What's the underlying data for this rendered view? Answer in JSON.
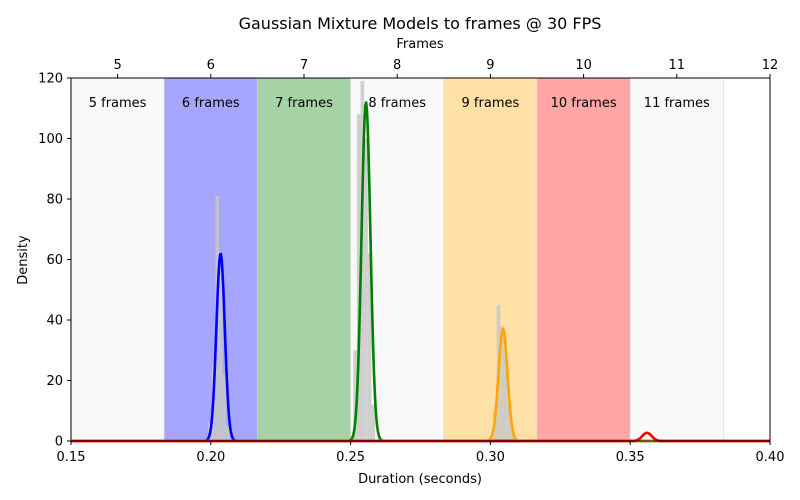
{
  "chart_data": {
    "type": "area",
    "title": "Gaussian Mixture Models to frames @ 30 FPS",
    "xlabel": "Duration (seconds)",
    "ylabel": "Density",
    "top_xlabel": "Frames",
    "xlim": [
      0.15,
      0.4
    ],
    "ylim": [
      0,
      120
    ],
    "x_ticks": [
      "0.15",
      "0.20",
      "0.25",
      "0.30",
      "0.35",
      "0.40"
    ],
    "y_ticks": [
      "0",
      "20",
      "40",
      "60",
      "80",
      "100",
      "120"
    ],
    "top_ticks": [
      "5",
      "6",
      "7",
      "8",
      "9",
      "10",
      "11",
      "12"
    ],
    "fps": 30,
    "frame_bands": [
      {
        "label": "5 frames",
        "frames": 5,
        "color": "#f2f2f2",
        "opacity": 0.45
      },
      {
        "label": "6 frames",
        "frames": 6,
        "color": "#0000ff",
        "opacity": 0.35
      },
      {
        "label": "7 frames",
        "frames": 7,
        "color": "#008000",
        "opacity": 0.35
      },
      {
        "label": "8 frames",
        "frames": 8,
        "color": "#f2f2f2",
        "opacity": 0.45
      },
      {
        "label": "9 frames",
        "frames": 9,
        "color": "#ffa500",
        "opacity": 0.35
      },
      {
        "label": "10 frames",
        "frames": 10,
        "color": "#ff0000",
        "opacity": 0.35
      },
      {
        "label": "11 frames",
        "frames": 11,
        "color": "#f2f2f2",
        "opacity": 0.45
      }
    ],
    "histogram": {
      "color": "#c8c8c8",
      "bars": [
        {
          "x": 0.1997,
          "height": 6
        },
        {
          "x": 0.201,
          "height": 25
        },
        {
          "x": 0.2023,
          "height": 81
        },
        {
          "x": 0.2036,
          "height": 55
        },
        {
          "x": 0.2049,
          "height": 22
        },
        {
          "x": 0.2062,
          "height": 5
        },
        {
          "x": 0.2516,
          "height": 30
        },
        {
          "x": 0.2529,
          "height": 108
        },
        {
          "x": 0.2542,
          "height": 119
        },
        {
          "x": 0.2555,
          "height": 100
        },
        {
          "x": 0.2568,
          "height": 62
        },
        {
          "x": 0.2581,
          "height": 12
        },
        {
          "x": 0.3016,
          "height": 10
        },
        {
          "x": 0.3029,
          "height": 45
        },
        {
          "x": 0.3042,
          "height": 38
        },
        {
          "x": 0.3055,
          "height": 30
        },
        {
          "x": 0.3068,
          "height": 12
        },
        {
          "x": 0.3081,
          "height": 3
        }
      ],
      "width": 0.0013
    },
    "series": [
      {
        "color": "#0000ff",
        "mean": 0.2035,
        "sigma": 0.0015,
        "peak": 62
      },
      {
        "color": "#008000",
        "mean": 0.2555,
        "sigma": 0.0016,
        "peak": 112
      },
      {
        "color": "#ffa500",
        "mean": 0.3045,
        "sigma": 0.0016,
        "peak": 37
      },
      {
        "color": "#ff0000",
        "mean": 0.356,
        "sigma": 0.0017,
        "peak": 2.7
      }
    ]
  }
}
